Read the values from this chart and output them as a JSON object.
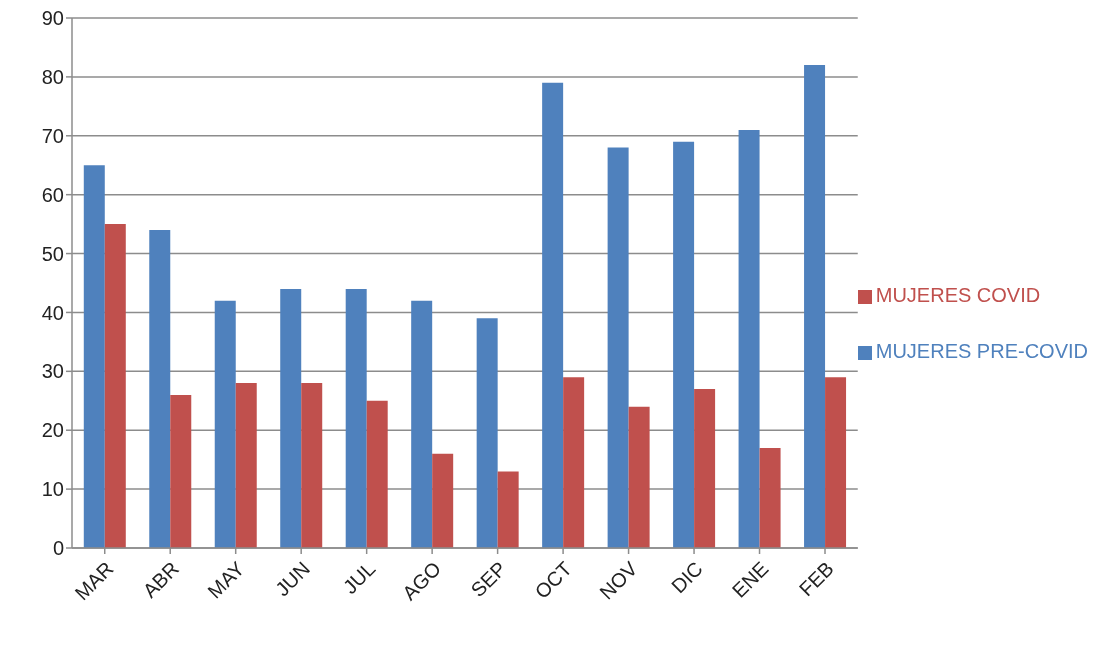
{
  "chart_data": {
    "type": "bar",
    "categories": [
      "MAR",
      "ABR",
      "MAY",
      "JUN",
      "JUL",
      "AGO",
      "SEP",
      "OCT",
      "NOV",
      "DIC",
      "ENE",
      "FEB"
    ],
    "series": [
      {
        "name": "MUJERES PRE-COVID",
        "color": "#4f81bd",
        "values": [
          65,
          54,
          42,
          44,
          44,
          42,
          39,
          79,
          68,
          69,
          71,
          82
        ]
      },
      {
        "name": "MUJERES COVID",
        "color": "#c0504d",
        "values": [
          55,
          26,
          28,
          28,
          25,
          16,
          13,
          29,
          24,
          27,
          17,
          29
        ]
      }
    ],
    "ylim": [
      0,
      90
    ],
    "yticks": [
      0,
      10,
      20,
      30,
      40,
      50,
      60,
      70,
      80,
      90
    ],
    "grid": "y",
    "legend": "right"
  }
}
